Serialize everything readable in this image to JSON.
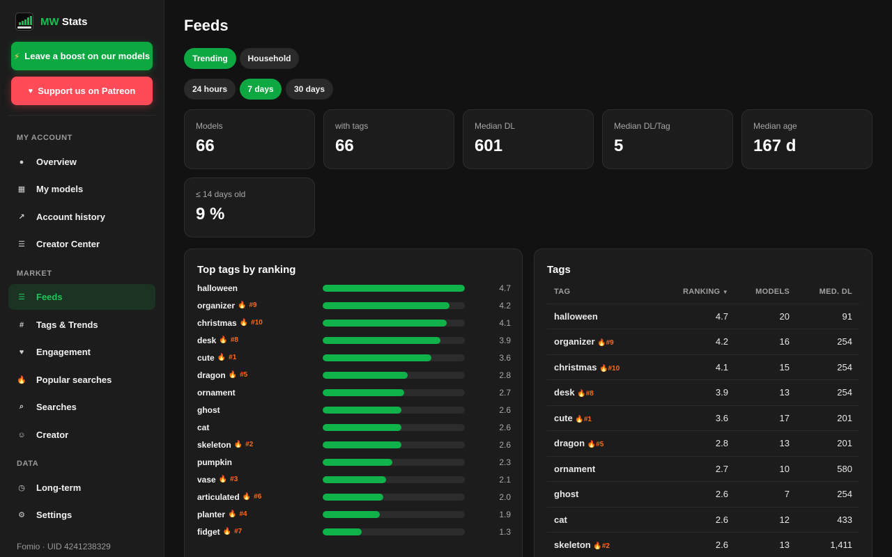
{
  "brand": {
    "prefix": "MW",
    "suffix": "Stats"
  },
  "sidebar": {
    "boost_label": "Leave a boost on our models",
    "patreon_label": "Support us on Patreon",
    "sections": {
      "account": "MY ACCOUNT",
      "market": "MARKET",
      "data": "DATA"
    },
    "items": [
      {
        "label": "Overview",
        "icon": "globe-icon",
        "glyph": "●"
      },
      {
        "label": "My models",
        "icon": "grid-icon",
        "glyph": "▦"
      },
      {
        "label": "Account history",
        "icon": "trend-icon",
        "glyph": "↗"
      },
      {
        "label": "Creator Center",
        "icon": "list-icon",
        "glyph": "☰"
      },
      {
        "label": "Feeds",
        "icon": "feed-icon",
        "glyph": "☰"
      },
      {
        "label": "Tags & Trends",
        "icon": "hash-icon",
        "glyph": "#"
      },
      {
        "label": "Engagement",
        "icon": "heart-icon",
        "glyph": "♥"
      },
      {
        "label": "Popular searches",
        "icon": "fire-icon",
        "glyph": "🔥"
      },
      {
        "label": "Searches",
        "icon": "search-icon",
        "glyph": "⌕"
      },
      {
        "label": "Creator",
        "icon": "smile-icon",
        "glyph": "☺"
      },
      {
        "label": "Long-term",
        "icon": "clock-icon",
        "glyph": "◷"
      },
      {
        "label": "Settings",
        "icon": "gear-icon",
        "glyph": "⚙"
      }
    ],
    "footer": "Fomio · UID 4241238329"
  },
  "main": {
    "title": "Feeds",
    "feed_tabs": [
      "Trending",
      "Household"
    ],
    "range_tabs": [
      "24 hours",
      "7 days",
      "30 days"
    ],
    "stats": [
      {
        "label": "Models",
        "value": "66"
      },
      {
        "label": "with tags",
        "value": "66"
      },
      {
        "label": "Median DL",
        "value": "601"
      },
      {
        "label": "Median DL/Tag",
        "value": "5"
      },
      {
        "label": "Median age",
        "value": "167 d"
      },
      {
        "label": "≤ 14 days old",
        "value": "9 %"
      }
    ],
    "top_tags_title": "Top tags by ranking",
    "tags_title": "Tags",
    "ranking_max": 4.7,
    "top_tags": [
      {
        "name": "halloween",
        "rank": "",
        "value": "4.7"
      },
      {
        "name": "organizer",
        "rank": "#9",
        "value": "4.2"
      },
      {
        "name": "christmas",
        "rank": "#10",
        "value": "4.1"
      },
      {
        "name": "desk",
        "rank": "#8",
        "value": "3.9"
      },
      {
        "name": "cute",
        "rank": "#1",
        "value": "3.6"
      },
      {
        "name": "dragon",
        "rank": "#5",
        "value": "2.8"
      },
      {
        "name": "ornament",
        "rank": "",
        "value": "2.7"
      },
      {
        "name": "ghost",
        "rank": "",
        "value": "2.6"
      },
      {
        "name": "cat",
        "rank": "",
        "value": "2.6"
      },
      {
        "name": "skeleton",
        "rank": "#2",
        "value": "2.6"
      },
      {
        "name": "pumpkin",
        "rank": "",
        "value": "2.3"
      },
      {
        "name": "vase",
        "rank": "#3",
        "value": "2.1"
      },
      {
        "name": "articulated",
        "rank": "#6",
        "value": "2.0"
      },
      {
        "name": "planter",
        "rank": "#4",
        "value": "1.9"
      },
      {
        "name": "fidget",
        "rank": "#7",
        "value": "1.3"
      }
    ],
    "table": {
      "headers": [
        "TAG",
        "RANKING",
        "MODELS",
        "MED. DL"
      ],
      "rows": [
        {
          "tag": "halloween",
          "rank": "",
          "ranking": "4.7",
          "models": "20",
          "med_dl": "91"
        },
        {
          "tag": "organizer",
          "rank": "#9",
          "ranking": "4.2",
          "models": "16",
          "med_dl": "254"
        },
        {
          "tag": "christmas",
          "rank": "#10",
          "ranking": "4.1",
          "models": "15",
          "med_dl": "254"
        },
        {
          "tag": "desk",
          "rank": "#8",
          "ranking": "3.9",
          "models": "13",
          "med_dl": "254"
        },
        {
          "tag": "cute",
          "rank": "#1",
          "ranking": "3.6",
          "models": "17",
          "med_dl": "201"
        },
        {
          "tag": "dragon",
          "rank": "#5",
          "ranking": "2.8",
          "models": "13",
          "med_dl": "201"
        },
        {
          "tag": "ornament",
          "rank": "",
          "ranking": "2.7",
          "models": "10",
          "med_dl": "580"
        },
        {
          "tag": "ghost",
          "rank": "",
          "ranking": "2.6",
          "models": "7",
          "med_dl": "254"
        },
        {
          "tag": "cat",
          "rank": "",
          "ranking": "2.6",
          "models": "12",
          "med_dl": "433"
        },
        {
          "tag": "skeleton",
          "rank": "#2",
          "ranking": "2.6",
          "models": "13",
          "med_dl": "1,411"
        }
      ]
    }
  }
}
